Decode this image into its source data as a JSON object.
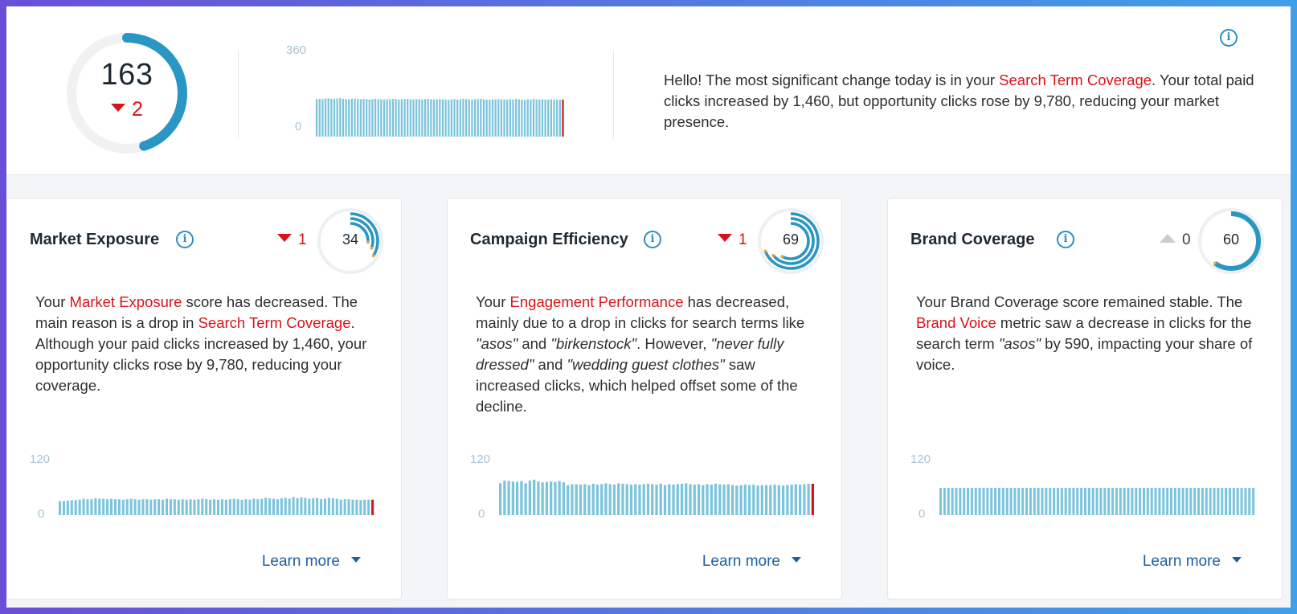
{
  "header": {
    "overall_score": "163",
    "overall_delta": "2",
    "overall_fraction": 0.45,
    "chart_ymax": "360",
    "chart_ymin": "0",
    "summary_lead": "Hello! The most significant change today is in your ",
    "summary_highlight": "Search Term Coverage",
    "summary_tail": ". Your total paid clicks increased by 1,460, but opportunity clicks rose by 9,780, reducing your market presence.",
    "info_icon": "info-icon"
  },
  "colors": {
    "accent": "#2a96c4",
    "bar": "#7cc4dc",
    "highlight": "#d7141a",
    "link": "#1f5fa0",
    "ring_track": "#eeeff1",
    "ring_dot": "#e0a64b"
  },
  "cards": [
    {
      "title": "Market Exposure",
      "delta": "1",
      "delta_dir": "down",
      "score": "34",
      "text_1": "Your ",
      "hl_1": "Market Exposure",
      "text_2": " score has decreased. The main reason is a drop in ",
      "hl_2": "Search Term Coverage",
      "text_3": ". Although your paid clicks increased by 1,460, your opportunity clicks rose by 9,780, reducing your coverage.",
      "chart_ymax": "120",
      "chart_ymin": "0",
      "learn_more": "Learn more"
    },
    {
      "title": "Campaign Efficiency",
      "delta": "1",
      "delta_dir": "down",
      "score": "69",
      "text_1": "Your ",
      "hl_1": "Engagement Performance",
      "text_2": " has decreased, mainly due to a drop in clicks for search terms like ",
      "q_1": "\"asos\"",
      "text_3": " and ",
      "q_2": "\"birkenstock\"",
      "text_4": ". However, ",
      "q_3": "\"never fully dressed\"",
      "text_5": " and ",
      "q_4": "\"wedding guest clothes\"",
      "text_6": " saw increased clicks, which helped offset some of the decline.",
      "chart_ymax": "120",
      "chart_ymin": "0",
      "learn_more": "Learn more"
    },
    {
      "title": "Brand Coverage",
      "delta": "0",
      "delta_dir": "flat",
      "score": "60",
      "text_1": "Your Brand Coverage score remained stable. The ",
      "hl_1": "Brand Voice",
      "text_2": " metric saw a decrease in clicks for the search term ",
      "q_1": "\"asos\"",
      "text_3": " by 590, impacting your share of voice.",
      "chart_ymax": "120",
      "chart_ymin": "0",
      "learn_more": "Learn more"
    }
  ],
  "chart_data": [
    {
      "type": "bar",
      "title": "Overall score history",
      "ylim": [
        0,
        360
      ],
      "values": [
        165,
        166,
        164,
        167,
        168,
        166,
        165,
        167,
        169,
        166,
        165,
        164,
        166,
        167,
        165,
        164,
        166,
        165,
        163,
        164,
        166,
        165,
        164,
        163,
        165,
        164,
        166,
        165,
        163,
        164,
        165,
        166,
        164,
        163,
        165,
        164,
        163,
        165,
        166,
        164,
        163,
        164,
        165,
        164,
        163,
        162,
        164,
        165,
        163,
        164,
        166,
        165,
        164,
        163,
        164,
        165,
        166,
        164,
        163,
        162,
        164,
        163,
        165,
        164,
        163,
        162,
        164,
        163,
        165,
        164,
        163,
        162,
        164,
        163,
        165,
        164,
        163,
        164,
        163,
        162,
        164,
        163,
        163,
        162,
        163
      ],
      "last_highlight": true
    },
    {
      "type": "bar",
      "title": "Market Exposure history",
      "ylim": [
        0,
        120
      ],
      "values": [
        31,
        31,
        32,
        33,
        33,
        34,
        36,
        35,
        35,
        37,
        36,
        36,
        35,
        36,
        35,
        35,
        34,
        35,
        36,
        35,
        34,
        35,
        35,
        34,
        35,
        35,
        34,
        36,
        35,
        35,
        34,
        35,
        34,
        35,
        34,
        35,
        36,
        35,
        34,
        35,
        34,
        35,
        34,
        35,
        36,
        35,
        34,
        35,
        34,
        36,
        35,
        36,
        38,
        37,
        36,
        35,
        37,
        38,
        36,
        40,
        37,
        39,
        38,
        36,
        37,
        38,
        35,
        36,
        38,
        37,
        36,
        34,
        35,
        35,
        34,
        34,
        33,
        34,
        34,
        34
      ],
      "last_highlight": true
    },
    {
      "type": "bar",
      "title": "Campaign Efficiency history",
      "ylim": [
        0,
        120
      ],
      "values": [
        70,
        76,
        75,
        74,
        73,
        75,
        70,
        76,
        78,
        74,
        72,
        73,
        74,
        73,
        75,
        72,
        66,
        68,
        68,
        67,
        68,
        66,
        69,
        67,
        68,
        70,
        68,
        67,
        70,
        69,
        68,
        67,
        68,
        67,
        68,
        69,
        68,
        67,
        69,
        66,
        68,
        67,
        68,
        69,
        70,
        68,
        67,
        68,
        66,
        68,
        67,
        69,
        68,
        67,
        68,
        66,
        65,
        66,
        67,
        66,
        67,
        65,
        66,
        66,
        66,
        67,
        66,
        65,
        66,
        67,
        68,
        67,
        68,
        69,
        69
      ],
      "last_highlight": true
    },
    {
      "type": "bar",
      "title": "Brand Coverage history",
      "ylim": [
        0,
        120
      ],
      "values": [
        60,
        60,
        60,
        60,
        60,
        60,
        60,
        60,
        60,
        60,
        60,
        60,
        60,
        60,
        60,
        60,
        60,
        60,
        60,
        60,
        60,
        60,
        60,
        60,
        60,
        60,
        60,
        60,
        60,
        60,
        60,
        60,
        60,
        60,
        60,
        60,
        60,
        60,
        60,
        60,
        60,
        60,
        60,
        60,
        60,
        60,
        60,
        60,
        60,
        60,
        60,
        60,
        60,
        60,
        60,
        60,
        60,
        60,
        60,
        60,
        60,
        60,
        60,
        60,
        60,
        60,
        60,
        60,
        60,
        60,
        60,
        60,
        60,
        60,
        60,
        60,
        60,
        60,
        60,
        60,
        60
      ],
      "last_highlight": false
    }
  ],
  "card_rings": [
    [
      0.34,
      0.3,
      0.26
    ],
    [
      0.69,
      0.64,
      0.58
    ],
    [
      0.6
    ]
  ]
}
